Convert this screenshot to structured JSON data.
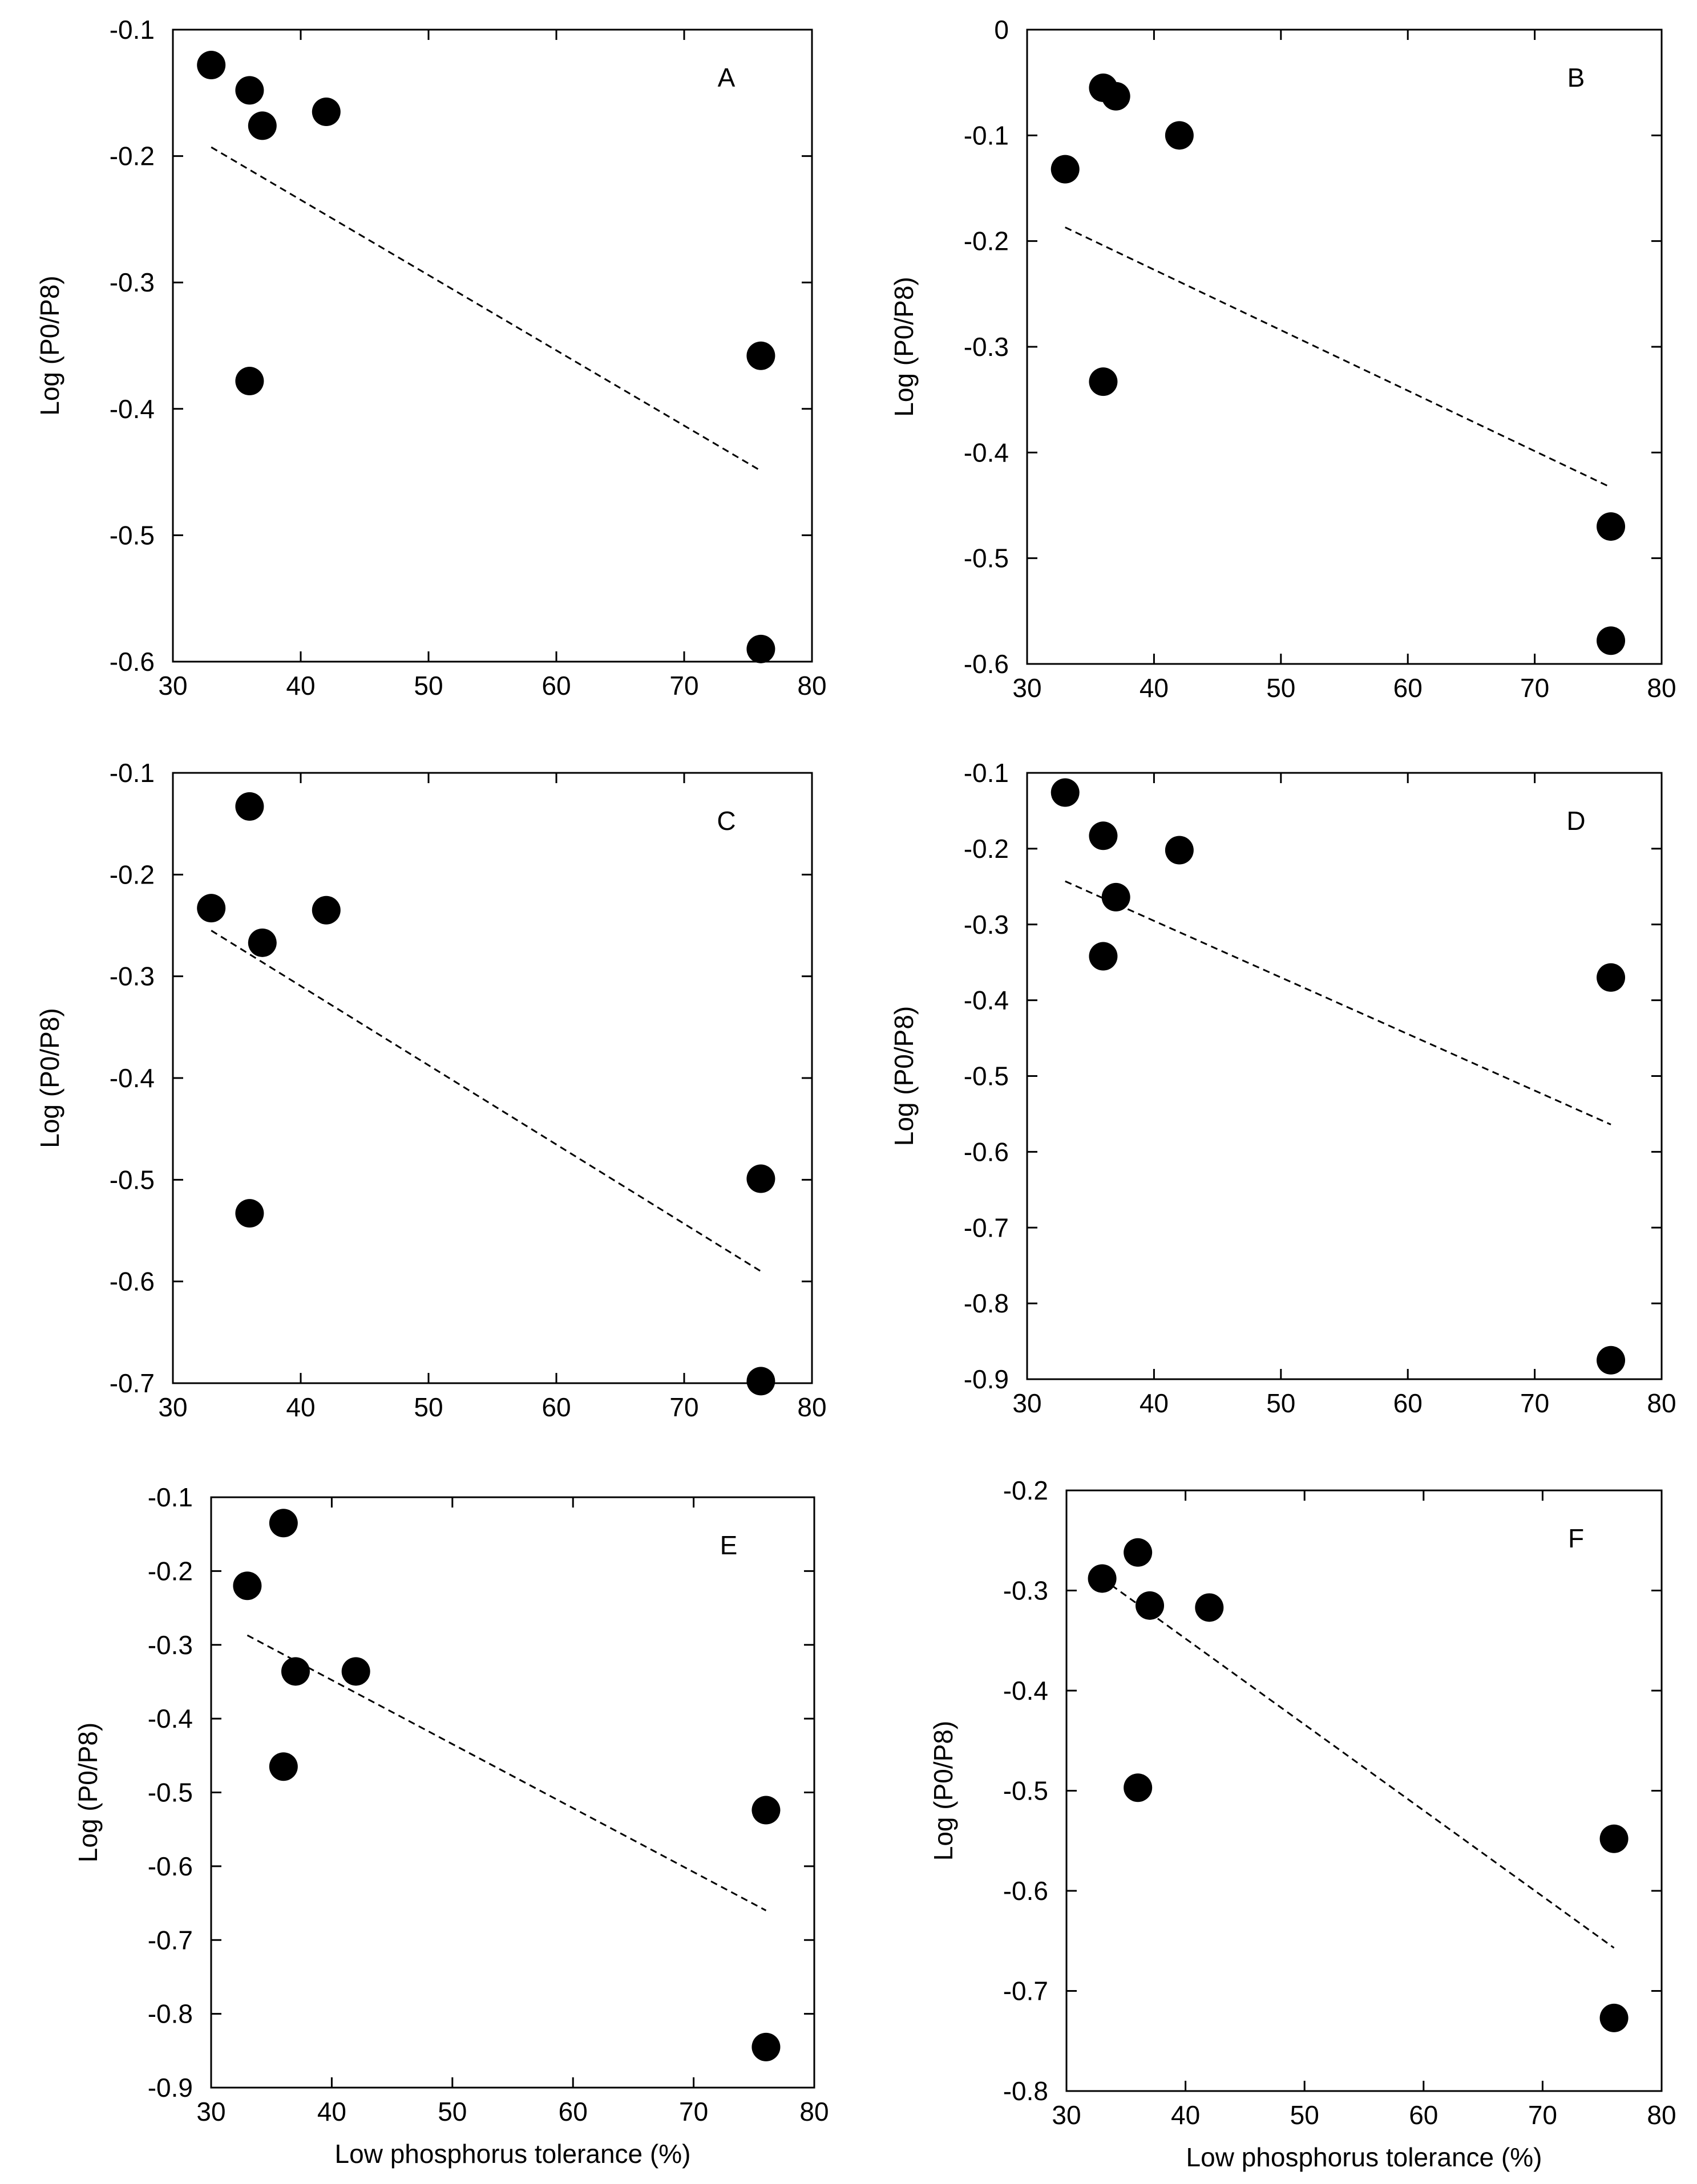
{
  "chart_data": [
    {
      "panel": "A",
      "type": "scatter",
      "xlabel": "",
      "ylabel": "Log (P0/P8)",
      "xlim": [
        30,
        80
      ],
      "ylim": [
        -0.6,
        -0.1
      ],
      "xticks": [
        "30",
        "40",
        "50",
        "60",
        "70",
        "80"
      ],
      "yticks": [
        "-0.6",
        "-0.5",
        "-0.4",
        "-0.3",
        "-0.2",
        "-0.1"
      ],
      "points": [
        [
          33,
          -0.128
        ],
        [
          36,
          -0.148
        ],
        [
          37,
          -0.176
        ],
        [
          42,
          -0.165
        ],
        [
          36,
          -0.378
        ],
        [
          76,
          -0.358
        ],
        [
          76,
          -0.59
        ]
      ],
      "trendline": [
        [
          33,
          -0.193
        ],
        [
          76,
          -0.449
        ]
      ]
    },
    {
      "panel": "B",
      "type": "scatter",
      "xlabel": "",
      "ylabel": "Log (P0/P8)",
      "xlim": [
        30,
        80
      ],
      "ylim": [
        -0.6,
        0
      ],
      "xticks": [
        "30",
        "40",
        "50",
        "60",
        "70",
        "80"
      ],
      "yticks": [
        "-0.6",
        "-0.5",
        "-0.4",
        "-0.3",
        "-0.2",
        "-0.1",
        "0"
      ],
      "points": [
        [
          33,
          -0.132
        ],
        [
          36,
          -0.055
        ],
        [
          37,
          -0.063
        ],
        [
          42,
          -0.1
        ],
        [
          36,
          -0.333
        ],
        [
          76,
          -0.47
        ],
        [
          76,
          -0.578
        ]
      ],
      "trendline": [
        [
          33,
          -0.187
        ],
        [
          76,
          -0.433
        ]
      ]
    },
    {
      "panel": "C",
      "type": "scatter",
      "xlabel": "",
      "ylabel": "Log (P0/P8)",
      "xlim": [
        30,
        80
      ],
      "ylim": [
        -0.7,
        -0.1
      ],
      "xticks": [
        "30",
        "40",
        "50",
        "60",
        "70",
        "80"
      ],
      "yticks": [
        "-0.7",
        "-0.6",
        "-0.5",
        "-0.4",
        "-0.3",
        "-0.2",
        "-0.1"
      ],
      "points": [
        [
          33,
          -0.233
        ],
        [
          36,
          -0.133
        ],
        [
          37,
          -0.267
        ],
        [
          42,
          -0.235
        ],
        [
          36,
          -0.533
        ],
        [
          76,
          -0.499
        ],
        [
          76,
          -0.698
        ]
      ],
      "trendline": [
        [
          33,
          -0.255
        ],
        [
          76,
          -0.59
        ]
      ]
    },
    {
      "panel": "D",
      "type": "scatter",
      "xlabel": "",
      "ylabel": "Log (P0/P8)",
      "xlim": [
        30,
        80
      ],
      "ylim": [
        -0.9,
        -0.1
      ],
      "xticks": [
        "30",
        "40",
        "50",
        "60",
        "70",
        "80"
      ],
      "yticks": [
        "-0.9",
        "-0.8",
        "-0.7",
        "-0.6",
        "-0.5",
        "-0.4",
        "-0.3",
        "-0.2",
        "-0.1"
      ],
      "points": [
        [
          33,
          -0.126
        ],
        [
          36,
          -0.183
        ],
        [
          37,
          -0.264
        ],
        [
          42,
          -0.202
        ],
        [
          36,
          -0.342
        ],
        [
          76,
          -0.37
        ],
        [
          76,
          -0.875
        ]
      ],
      "trendline": [
        [
          33,
          -0.243
        ],
        [
          76,
          -0.564
        ]
      ]
    },
    {
      "panel": "E",
      "type": "scatter",
      "xlabel": "Low phosphorus tolerance (%)",
      "ylabel": "Log (P0/P8)",
      "xlim": [
        30,
        80
      ],
      "ylim": [
        -0.9,
        -0.1
      ],
      "xticks": [
        "30",
        "40",
        "50",
        "60",
        "70",
        "80"
      ],
      "yticks": [
        "-0.9",
        "-0.8",
        "-0.7",
        "-0.6",
        "-0.5",
        "-0.4",
        "-0.3",
        "-0.2",
        "-0.1"
      ],
      "points": [
        [
          33,
          -0.22
        ],
        [
          36,
          -0.135
        ],
        [
          37,
          -0.336
        ],
        [
          42,
          -0.336
        ],
        [
          36,
          -0.465
        ],
        [
          76,
          -0.524
        ],
        [
          76,
          -0.845
        ]
      ],
      "trendline": [
        [
          33,
          -0.287
        ],
        [
          76,
          -0.66
        ]
      ]
    },
    {
      "panel": "F",
      "type": "scatter",
      "xlabel": "Low phosphorus tolerance (%)",
      "ylabel": "Log (P0/P8)",
      "xlim": [
        30,
        80
      ],
      "ylim": [
        -0.8,
        -0.2
      ],
      "xticks": [
        "30",
        "40",
        "50",
        "60",
        "70",
        "80"
      ],
      "yticks": [
        "-0.8",
        "-0.7",
        "-0.6",
        "-0.5",
        "-0.4",
        "-0.3",
        "-0.2"
      ],
      "points": [
        [
          33,
          -0.288
        ],
        [
          36,
          -0.262
        ],
        [
          37,
          -0.315
        ],
        [
          42,
          -0.317
        ],
        [
          36,
          -0.497
        ],
        [
          76,
          -0.548
        ],
        [
          76,
          -0.727
        ]
      ],
      "trendline": [
        [
          33,
          -0.288
        ],
        [
          76,
          -0.657
        ]
      ]
    }
  ]
}
